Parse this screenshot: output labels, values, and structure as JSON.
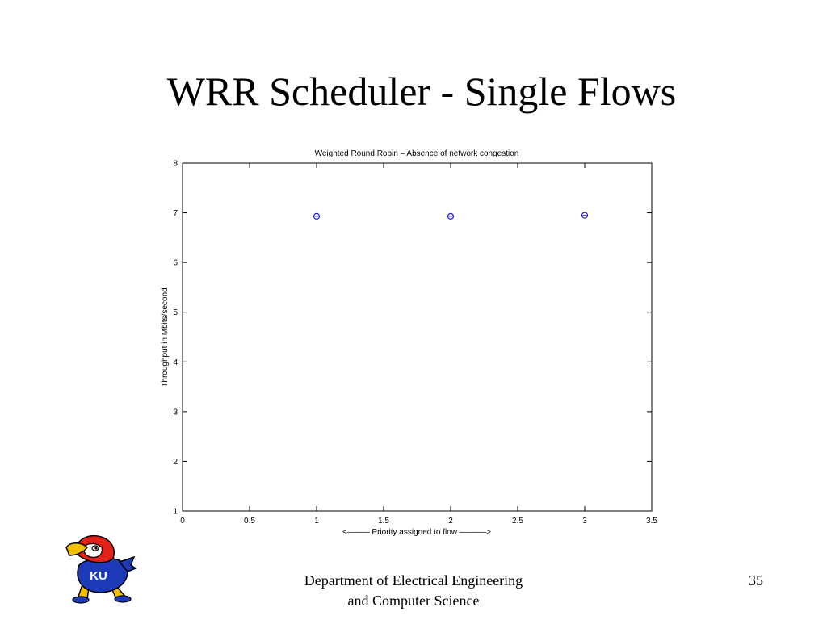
{
  "slide": {
    "title": "WRR Scheduler - Single Flows",
    "footer_line1": "Department of Electrical Engineering",
    "footer_line2": "and Computer Science",
    "page_number": "35",
    "logo_text": "KU"
  },
  "chart_data": {
    "type": "scatter",
    "title": "Weighted Round Robin – Absence of network congestion",
    "xlabel": "<––––– Priority assigned to flow ––––––>",
    "ylabel": "Throughput in Mbits/second",
    "xlim": [
      0,
      3.5
    ],
    "ylim": [
      1,
      8
    ],
    "xticks": [
      0,
      0.5,
      1,
      1.5,
      2,
      2.5,
      3,
      3.5
    ],
    "xtick_labels": [
      "0",
      "0.5",
      "1",
      "1.5",
      "2",
      "2.5",
      "3",
      "3.5"
    ],
    "yticks": [
      1,
      2,
      3,
      4,
      5,
      6,
      7,
      8
    ],
    "ytick_labels": [
      "1",
      "2",
      "3",
      "4",
      "5",
      "6",
      "7",
      "8"
    ],
    "grid": false,
    "points": [
      {
        "x": 1,
        "y": 6.93
      },
      {
        "x": 2,
        "y": 6.93
      },
      {
        "x": 3,
        "y": 6.95
      }
    ],
    "marker_color": "#1f1fd0"
  }
}
